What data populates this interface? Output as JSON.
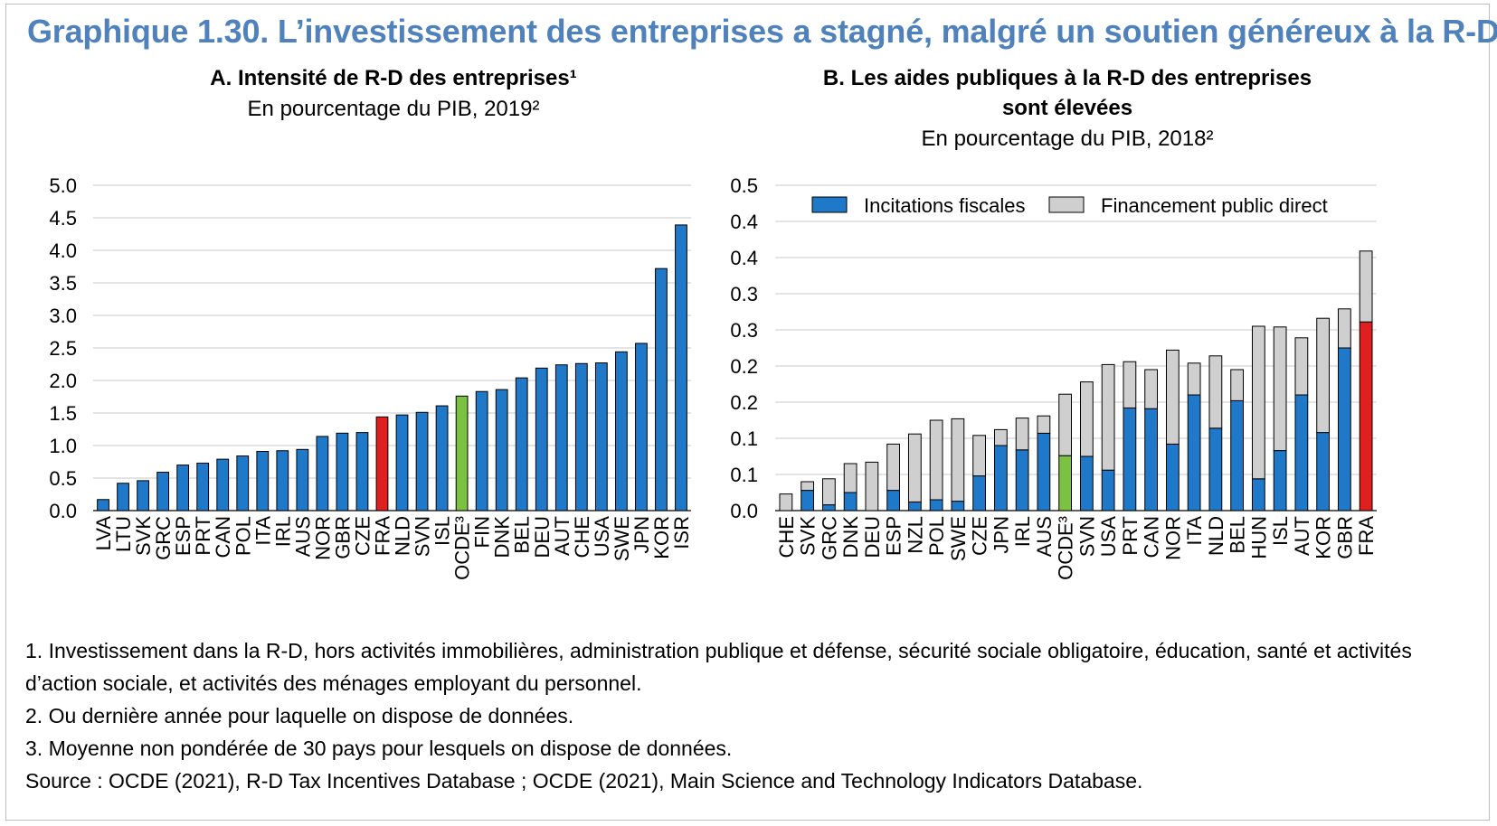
{
  "title": "Graphique 1.30. L’investissement des entreprises a stagné, malgré un soutien généreux à la R-D",
  "panels": {
    "a": {
      "title": "A. Intensité de R-D des entreprises¹",
      "subtitle": "En pourcentage du PIB, 2019²"
    },
    "b": {
      "title_line1": "B. Les aides publiques à la R-D des entreprises",
      "title_line2": "sont élevées",
      "subtitle": "En pourcentage du PIB, 2018²"
    }
  },
  "chart_data": [
    {
      "id": "A",
      "type": "bar",
      "title": "A. Intensité de R-D des entreprises¹",
      "subtitle": "En pourcentage du PIB, 2019²",
      "ylim": [
        0,
        5
      ],
      "yticks": [
        "0.0",
        "0.5",
        "1.0",
        "1.5",
        "2.0",
        "2.5",
        "3.0",
        "3.5",
        "4.0",
        "4.5",
        "5.0"
      ],
      "grid": true,
      "categories": [
        "LVA",
        "LTU",
        "SVK",
        "GRC",
        "ESP",
        "PRT",
        "CAN",
        "POL",
        "ITA",
        "IRL",
        "AUS",
        "NOR",
        "GBR",
        "CZE",
        "FRA",
        "NLD",
        "SVN",
        "ISL",
        "OCDE³",
        "FIN",
        "DNK",
        "BEL",
        "DEU",
        "AUT",
        "CHE",
        "USA",
        "SWE",
        "JPN",
        "KOR",
        "ISR"
      ],
      "values": [
        0.17,
        0.42,
        0.46,
        0.59,
        0.7,
        0.73,
        0.79,
        0.84,
        0.91,
        0.92,
        0.94,
        1.14,
        1.19,
        1.2,
        1.44,
        1.47,
        1.51,
        1.61,
        1.76,
        1.83,
        1.86,
        2.04,
        2.19,
        2.24,
        2.26,
        2.27,
        2.44,
        2.57,
        3.72,
        4.39
      ],
      "colors": {
        "default": "#1f78c8",
        "FRA": "#e02020",
        "OCDE³": "#7cc242"
      }
    },
    {
      "id": "B",
      "type": "bar",
      "stacked": true,
      "title": "B. Les aides publiques à la R-D des entreprises sont élevées",
      "subtitle": "En pourcentage du PIB, 2018²",
      "ylim": [
        0,
        0.45
      ],
      "yticks": [
        "0.0",
        "0.1",
        "0.1",
        "0.2",
        "0.2",
        "0.3",
        "0.3",
        "0.4",
        "0.4",
        "0.5"
      ],
      "grid": true,
      "legend_position": "top",
      "categories": [
        "CHE",
        "SVK",
        "GRC",
        "DNK",
        "DEU",
        "ESP",
        "NZL",
        "POL",
        "SWE",
        "CZE",
        "JPN",
        "IRL",
        "AUS",
        "OCDE³",
        "SVN",
        "USA",
        "PRT",
        "CAN",
        "NOR",
        "ITA",
        "NLD",
        "BEL",
        "HUN",
        "ISL",
        "AUT",
        "KOR",
        "GBR",
        "FRA"
      ],
      "series": [
        {
          "name": "Incitations fiscales",
          "color": "#1f78c8",
          "values": [
            0.0,
            0.028,
            0.008,
            0.025,
            0.0,
            0.028,
            0.012,
            0.015,
            0.013,
            0.048,
            0.09,
            0.084,
            0.107,
            0.076,
            0.075,
            0.056,
            0.142,
            0.141,
            0.092,
            0.16,
            0.114,
            0.152,
            0.044,
            0.083,
            0.16,
            0.108,
            0.225,
            0.261
          ]
        },
        {
          "name": "Financement public direct",
          "color": "#cfcfcf",
          "values": [
            0.023,
            0.012,
            0.036,
            0.04,
            0.067,
            0.064,
            0.094,
            0.11,
            0.114,
            0.056,
            0.022,
            0.044,
            0.024,
            0.085,
            0.103,
            0.146,
            0.064,
            0.054,
            0.13,
            0.044,
            0.1,
            0.043,
            0.211,
            0.171,
            0.079,
            0.158,
            0.054,
            0.098
          ]
        }
      ],
      "colors": {
        "FRA": "#e02020",
        "OCDE³": "#7cc242"
      }
    }
  ],
  "notes": [
    "1. Investissement dans la R-D, hors activités immobilières, administration publique et défense, sécurité sociale obligatoire, éducation, santé et activités d’action sociale, et activités des ménages employant du personnel.",
    "2. Ou dernière année pour laquelle on dispose de données.",
    "3. Moyenne non pondérée de 30 pays pour lesquels on dispose de données.",
    "Source : OCDE (2021), R-D Tax Incentives Database ; OCDE (2021), Main Science and Technology Indicators Database."
  ]
}
